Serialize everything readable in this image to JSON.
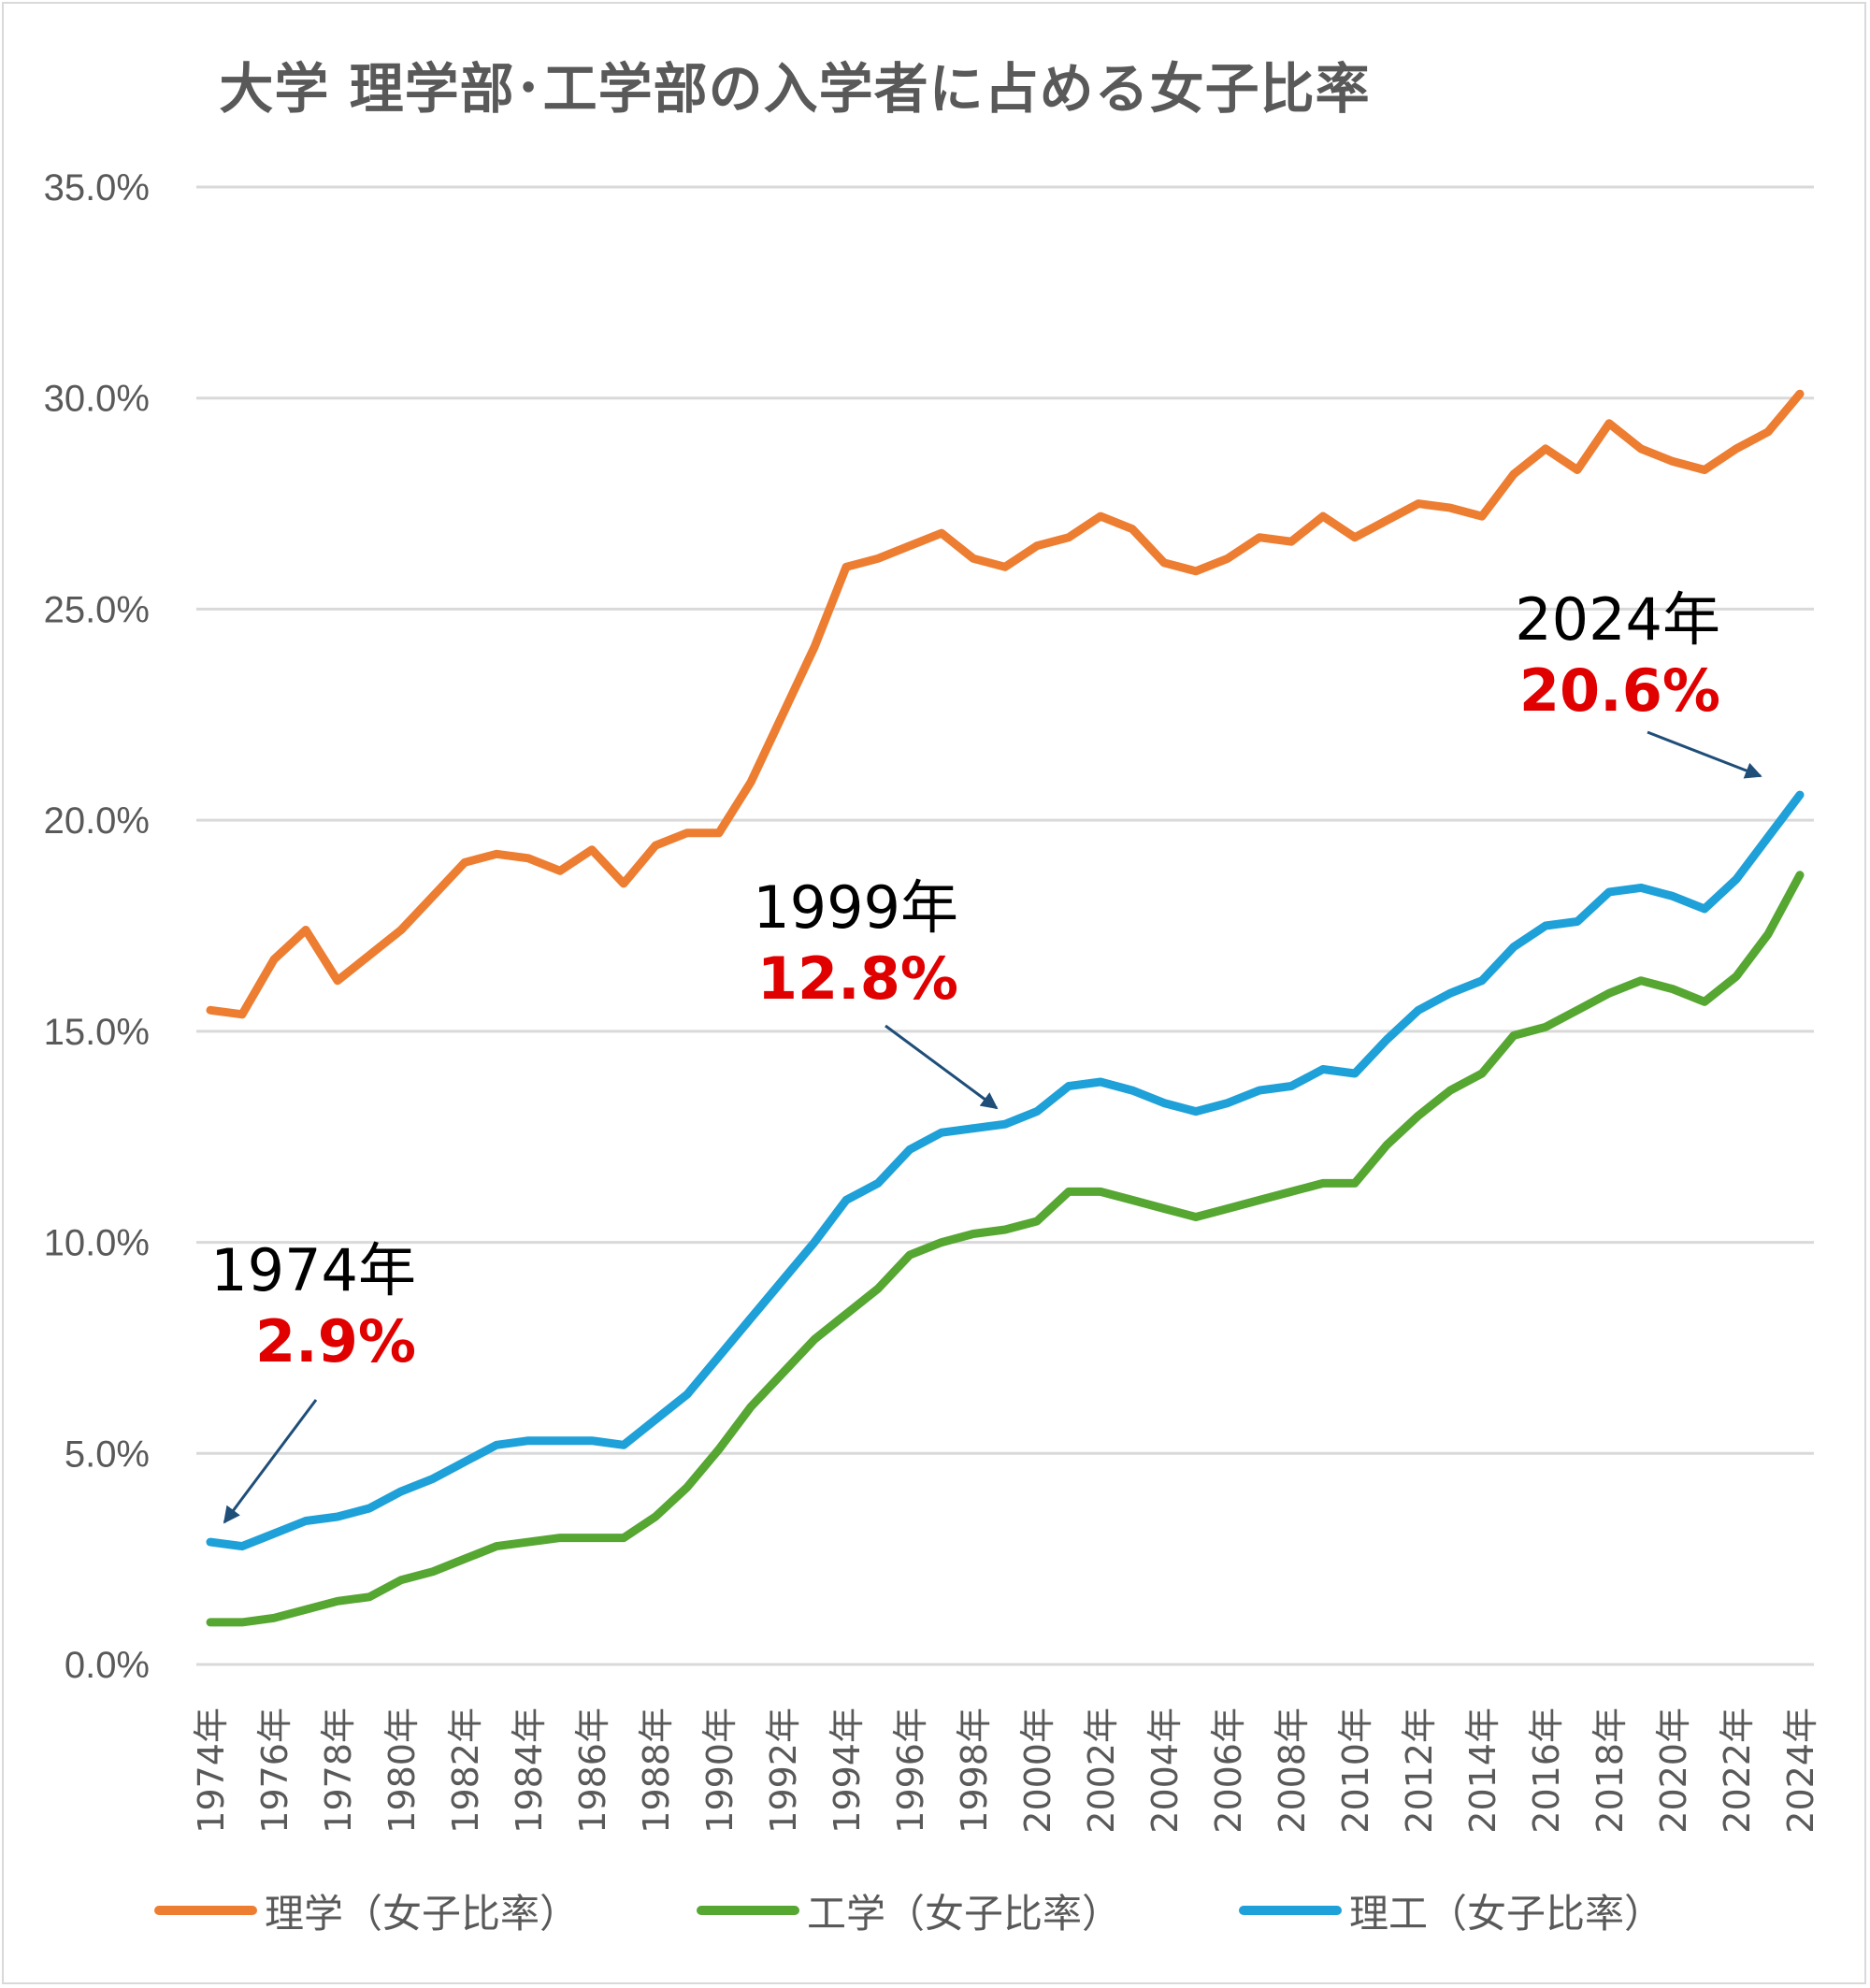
{
  "colors": {
    "rigaku": "#ED7D31",
    "kogaku": "#56A632",
    "riko": "#1EA0D8",
    "grid": "#d9d9d9",
    "tick": "#595959",
    "arrow": "#1f4e79",
    "highlight": "#e00000"
  },
  "annotations": [
    {
      "year": "1974年",
      "value": "2.9%"
    },
    {
      "year": "1999年",
      "value": "12.8%"
    },
    {
      "year": "2024年",
      "value": "20.6%"
    }
  ],
  "chart_data": {
    "type": "line",
    "title": "大学 理学部･工学部の入学者に占める女子比率",
    "xlabel": "",
    "ylabel": "",
    "ylim": [
      0,
      35
    ],
    "yticks": [
      "0.0%",
      "5.0%",
      "10.0%",
      "15.0%",
      "20.0%",
      "25.0%",
      "30.0%",
      "35.0%"
    ],
    "grid": true,
    "legend": "bottom",
    "x": [
      "1974年",
      "1975年",
      "1976年",
      "1977年",
      "1978年",
      "1979年",
      "1980年",
      "1981年",
      "1982年",
      "1983年",
      "1984年",
      "1985年",
      "1986年",
      "1987年",
      "1988年",
      "1989年",
      "1990年",
      "1991年",
      "1992年",
      "1993年",
      "1994年",
      "1995年",
      "1996年",
      "1997年",
      "1998年",
      "1999年",
      "2000年",
      "2001年",
      "2002年",
      "2003年",
      "2004年",
      "2005年",
      "2006年",
      "2007年",
      "2008年",
      "2009年",
      "2010年",
      "2011年",
      "2012年",
      "2013年",
      "2014年",
      "2015年",
      "2016年",
      "2017年",
      "2018年",
      "2019年",
      "2020年",
      "2021年",
      "2022年",
      "2023年",
      "2024年"
    ],
    "xtick_labels": [
      "1974年",
      "1976年",
      "1978年",
      "1980年",
      "1982年",
      "1984年",
      "1986年",
      "1988年",
      "1990年",
      "1992年",
      "1994年",
      "1996年",
      "1998年",
      "2000年",
      "2002年",
      "2004年",
      "2006年",
      "2008年",
      "2010年",
      "2012年",
      "2014年",
      "2016年",
      "2018年",
      "2020年",
      "2022年",
      "2024年"
    ],
    "series": [
      {
        "name": "理学（女子比率）",
        "values": [
          15.5,
          15.4,
          16.7,
          17.4,
          16.2,
          16.8,
          17.4,
          18.2,
          19.0,
          19.2,
          19.1,
          18.8,
          19.3,
          18.5,
          19.4,
          19.7,
          19.7,
          20.9,
          22.5,
          24.1,
          26.0,
          26.2,
          26.5,
          26.8,
          26.2,
          26.0,
          26.5,
          26.7,
          27.2,
          26.9,
          26.1,
          25.9,
          26.2,
          26.7,
          26.6,
          27.2,
          26.7,
          27.1,
          27.5,
          27.4,
          27.2,
          28.2,
          28.8,
          28.3,
          29.4,
          28.8,
          28.5,
          28.3,
          28.8,
          29.2,
          30.1
        ]
      },
      {
        "name": "工学（女子比率）",
        "values": [
          1.0,
          1.0,
          1.1,
          1.3,
          1.5,
          1.6,
          2.0,
          2.2,
          2.5,
          2.8,
          2.9,
          3.0,
          3.0,
          3.0,
          3.5,
          4.2,
          5.1,
          6.1,
          6.9,
          7.7,
          8.3,
          8.9,
          9.7,
          10.0,
          10.2,
          10.3,
          10.5,
          11.2,
          11.2,
          11.0,
          10.8,
          10.6,
          10.8,
          11.0,
          11.2,
          11.4,
          11.4,
          12.3,
          13.0,
          13.6,
          14.0,
          14.9,
          15.1,
          15.5,
          15.9,
          16.2,
          16.0,
          15.7,
          16.3,
          17.3,
          18.7
        ]
      },
      {
        "name": "理工（女子比率）",
        "values": [
          2.9,
          2.8,
          3.1,
          3.4,
          3.5,
          3.7,
          4.1,
          4.4,
          4.8,
          5.2,
          5.3,
          5.3,
          5.3,
          5.2,
          5.8,
          6.4,
          7.3,
          8.2,
          9.1,
          10.0,
          11.0,
          11.4,
          12.2,
          12.6,
          12.7,
          12.8,
          13.1,
          13.7,
          13.8,
          13.6,
          13.3,
          13.1,
          13.3,
          13.6,
          13.7,
          14.1,
          14.0,
          14.8,
          15.5,
          15.9,
          16.2,
          17.0,
          17.5,
          17.6,
          18.3,
          18.4,
          18.2,
          17.9,
          18.6,
          19.6,
          20.6
        ]
      }
    ]
  }
}
